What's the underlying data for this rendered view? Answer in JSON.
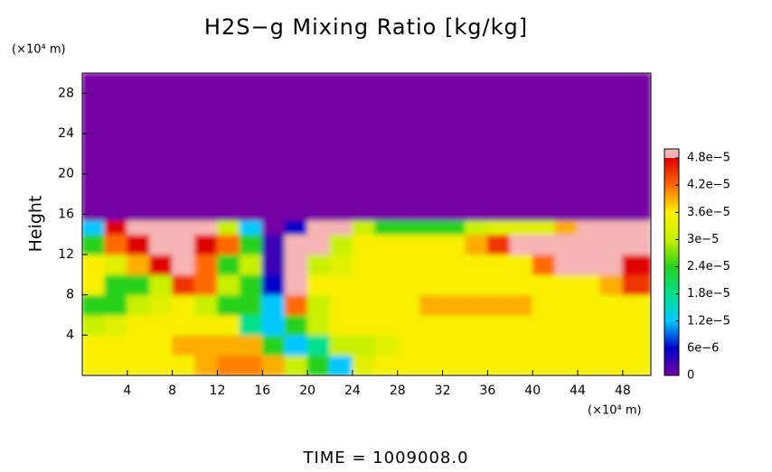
{
  "chart_data": {
    "type": "heatmap",
    "title": "H2S−g Mixing Ratio [kg/kg]",
    "y_unit": "(×10⁴ m)",
    "x_unit": "(×10⁴ m)",
    "ylabel": "Height",
    "footer": "TIME = 1009008.0",
    "xlim": [
      0,
      50.5
    ],
    "ylim": [
      0,
      30
    ],
    "xticks": [
      4,
      8,
      12,
      16,
      20,
      24,
      28,
      32,
      36,
      40,
      44,
      48
    ],
    "yticks": [
      4,
      8,
      12,
      16,
      20,
      24,
      28
    ],
    "xbins": [
      0,
      2,
      4,
      6,
      8,
      10,
      12,
      14,
      16,
      18,
      20,
      22,
      24,
      26,
      28,
      30,
      32,
      34,
      36,
      38,
      40,
      42,
      44,
      46,
      48,
      50.5
    ],
    "ybins": [
      0,
      2,
      4,
      6,
      8,
      10,
      12,
      14,
      15.4,
      30
    ],
    "z": [
      [
        3.6e-05,
        3.6e-05,
        3.6e-05,
        3.6e-05,
        3.6e-05,
        3.9e-05,
        4.1e-05,
        4.1e-05,
        3.9e-05,
        3e-05,
        2.4e-05,
        1.2e-05,
        3.3e-05,
        3.6e-05,
        3.6e-05,
        3.6e-05,
        3.6e-05,
        3.6e-05,
        3.6e-05,
        3.6e-05,
        3.6e-05,
        3.6e-05,
        3.6e-05,
        3.6e-05,
        3.6e-05
      ],
      [
        3.6e-05,
        3.6e-05,
        3.6e-05,
        3.6e-05,
        3.9e-05,
        3.9e-05,
        3.9e-05,
        3.9e-05,
        2.4e-05,
        1.2e-05,
        1.8e-05,
        3e-05,
        3e-05,
        3.3e-05,
        3.6e-05,
        3.6e-05,
        3.6e-05,
        3.6e-05,
        3.6e-05,
        3.6e-05,
        3.6e-05,
        3.6e-05,
        3.6e-05,
        3.6e-05,
        3.6e-05
      ],
      [
        3e-05,
        3.3e-05,
        3.6e-05,
        3.6e-05,
        3.6e-05,
        3.6e-05,
        3.6e-05,
        1.8e-05,
        1.2e-05,
        2.4e-05,
        3e-05,
        3.6e-05,
        3.6e-05,
        3.6e-05,
        3.6e-05,
        3.6e-05,
        3.6e-05,
        3.6e-05,
        3.6e-05,
        3.6e-05,
        3.6e-05,
        3.6e-05,
        3.6e-05,
        3.6e-05,
        3.6e-05
      ],
      [
        2.4e-05,
        2.4e-05,
        3e-05,
        3.3e-05,
        3.6e-05,
        3e-05,
        2.4e-05,
        2.4e-05,
        1.2e-05,
        4.2e-05,
        3e-05,
        3.6e-05,
        3.6e-05,
        3.6e-05,
        3.6e-05,
        3.9e-05,
        3.9e-05,
        3.9e-05,
        3.9e-05,
        3.9e-05,
        3.6e-05,
        3.6e-05,
        3.6e-05,
        3.6e-05,
        3.6e-05
      ],
      [
        3.6e-05,
        2.4e-05,
        2.4e-05,
        3e-05,
        4.5e-05,
        4.2e-05,
        3e-05,
        2.4e-05,
        6e-06,
        5e-05,
        3.6e-05,
        3.6e-05,
        3.6e-05,
        3.6e-05,
        3.6e-05,
        3.6e-05,
        3.6e-05,
        3.6e-05,
        3.6e-05,
        3.6e-05,
        3.6e-05,
        3.6e-05,
        3.6e-05,
        3.9e-05,
        4.5e-05
      ],
      [
        3.6e-05,
        3.3e-05,
        3.9e-05,
        4.8e-05,
        5e-05,
        4.2e-05,
        2.4e-05,
        3e-05,
        3e-06,
        5e-05,
        3e-05,
        3.3e-05,
        3.6e-05,
        3.6e-05,
        3.6e-05,
        3.6e-05,
        3.6e-05,
        3.6e-05,
        3.6e-05,
        3.6e-05,
        4.2e-05,
        5e-05,
        5e-05,
        5e-05,
        4.8e-05
      ],
      [
        2.4e-05,
        4.2e-05,
        4.8e-05,
        5e-05,
        5e-05,
        4.8e-05,
        4.2e-05,
        2.4e-05,
        3e-06,
        5e-05,
        5e-05,
        3e-05,
        3.6e-05,
        3.6e-05,
        3.6e-05,
        3.6e-05,
        3.6e-05,
        3.9e-05,
        4.5e-05,
        5e-05,
        5e-05,
        5e-05,
        5e-05,
        5e-05,
        5e-05
      ],
      [
        1.2e-05,
        4.8e-05,
        5e-05,
        5e-05,
        5e-05,
        5e-05,
        3e-05,
        1.2e-05,
        0,
        6e-06,
        5e-05,
        5e-05,
        3e-05,
        2.4e-05,
        2.4e-05,
        2.4e-05,
        2.4e-05,
        3e-05,
        3.3e-05,
        3.3e-05,
        3.3e-05,
        3.9e-05,
        5e-05,
        5e-05,
        5e-05
      ],
      [
        0,
        0,
        0,
        0,
        0,
        0,
        0,
        0,
        0,
        0,
        0,
        0,
        0,
        0,
        0,
        0,
        0,
        0,
        0,
        0,
        0,
        0,
        0,
        0,
        0
      ]
    ],
    "colorbar": {
      "lim": [
        0,
        5e-05
      ],
      "ticks": [
        {
          "value": 0,
          "label": "0"
        },
        {
          "value": 6e-06,
          "label": "6e−6"
        },
        {
          "value": 1.2e-05,
          "label": "1.2e−5"
        },
        {
          "value": 1.8e-05,
          "label": "1.8e−5"
        },
        {
          "value": 2.4e-05,
          "label": "2.4e−5"
        },
        {
          "value": 3e-05,
          "label": "3e−5"
        },
        {
          "value": 3.6e-05,
          "label": "3.6e−5"
        },
        {
          "value": 4.2e-05,
          "label": "4.2e−5"
        },
        {
          "value": 4.8e-05,
          "label": "4.8e−5"
        }
      ],
      "colors": [
        "#7400a4",
        "#0000c8",
        "#00c8ff",
        "#00e08c",
        "#28d21e",
        "#c8f000",
        "#f8f000",
        "#ff6a00",
        "#e00000"
      ],
      "over_color": "#f6b4b4"
    }
  }
}
